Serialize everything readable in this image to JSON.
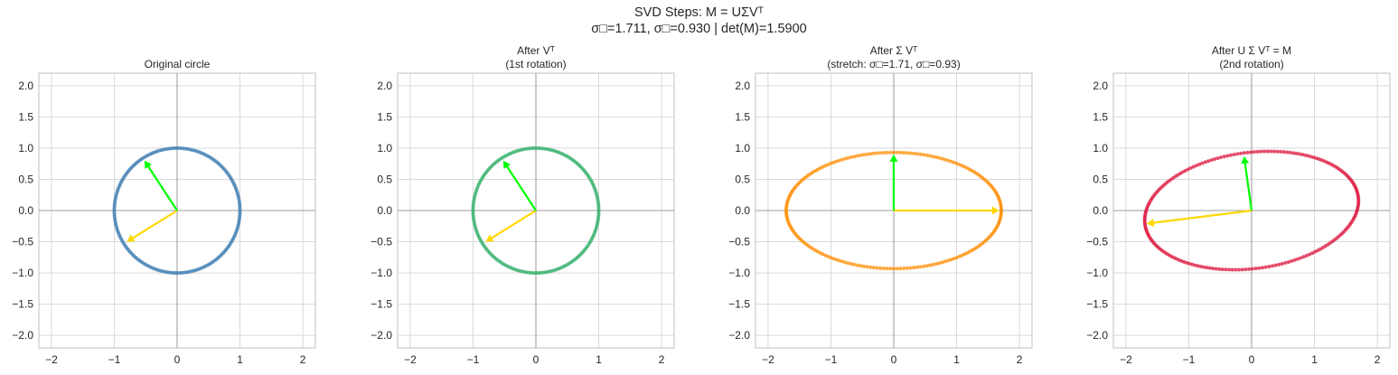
{
  "suptitle": {
    "line1": "SVD Steps: M = UΣVᵀ",
    "line2": "σ□=1.711, σ□=0.930  |  det(M)=1.5900"
  },
  "chart_data": [
    {
      "type": "scatter",
      "title_lines": [
        "Original circle"
      ],
      "color": "#4682b4",
      "shape": {
        "kind": "circle",
        "radius": 1.0
      },
      "arrows": [
        {
          "color": "#ffd700",
          "end": [
            -0.8,
            -0.5
          ]
        },
        {
          "color": "#00ff00",
          "end": [
            -0.52,
            0.8
          ]
        }
      ],
      "xlim": [
        -2.2,
        2.2
      ],
      "ylim": [
        -2.2,
        2.2
      ],
      "xticks": [
        "−2",
        "−1",
        "0",
        "1",
        "2"
      ],
      "yticks": [
        "2.0",
        "1.5",
        "1.0",
        "0.5",
        "0.0",
        "−0.5",
        "−1.0",
        "−1.5",
        "−2.0"
      ],
      "grid": true
    },
    {
      "type": "scatter",
      "title_lines": [
        "After Vᵀ",
        "(1st rotation)"
      ],
      "color": "#3cb371",
      "shape": {
        "kind": "circle",
        "radius": 1.0
      },
      "arrows": [
        {
          "color": "#ffd700",
          "end": [
            -0.8,
            -0.5
          ]
        },
        {
          "color": "#00ff00",
          "end": [
            -0.52,
            0.8
          ]
        }
      ],
      "xlim": [
        -2.2,
        2.2
      ],
      "ylim": [
        -2.2,
        2.2
      ],
      "xticks": [
        "−2",
        "−1",
        "0",
        "1",
        "2"
      ],
      "yticks": [
        "2.0",
        "1.5",
        "1.0",
        "0.5",
        "0.0",
        "−0.5",
        "−1.0",
        "−1.5",
        "−2.0"
      ],
      "grid": true
    },
    {
      "type": "scatter",
      "title_lines": [
        "After Σ Vᵀ",
        "(stretch: σ□=1.71, σ□=0.93)"
      ],
      "color": "#ff8c00",
      "shape": {
        "kind": "ellipse",
        "semi_axes": [
          1.711,
          0.93
        ],
        "tilt_deg": 0
      },
      "arrows": [
        {
          "color": "#ffd700",
          "end": [
            1.68,
            0
          ]
        },
        {
          "color": "#00ff00",
          "end": [
            0,
            0.9
          ]
        }
      ],
      "xlim": [
        -2.2,
        2.2
      ],
      "ylim": [
        -2.2,
        2.2
      ],
      "xticks": [
        "−2",
        "−1",
        "0",
        "1",
        "2"
      ],
      "yticks": [
        "2.0",
        "1.5",
        "1.0",
        "0.5",
        "0.0",
        "−0.5",
        "−1.0",
        "−1.5",
        "−2.0"
      ],
      "grid": true
    },
    {
      "type": "scatter",
      "title_lines": [
        "After U Σ Vᵀ = M",
        "(2nd rotation)"
      ],
      "color": "#dc143c",
      "shape": {
        "kind": "ellipse",
        "semi_axes": [
          1.711,
          0.93
        ],
        "tilt_deg": 7.4
      },
      "arrows": [
        {
          "color": "#ffd700",
          "end": [
            -1.67,
            -0.21
          ]
        },
        {
          "color": "#00ff00",
          "end": [
            -0.12,
            0.87
          ]
        }
      ],
      "xlim": [
        -2.2,
        2.2
      ],
      "ylim": [
        -2.2,
        2.2
      ],
      "xticks": [
        "−2",
        "−1",
        "0",
        "1",
        "2"
      ],
      "yticks": [
        "2.0",
        "1.5",
        "1.0",
        "0.5",
        "0.0",
        "−0.5",
        "−1.0",
        "−1.5",
        "−2.0"
      ],
      "grid": true
    }
  ]
}
